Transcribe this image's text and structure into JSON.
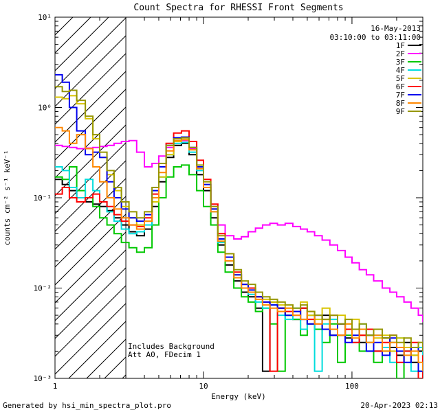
{
  "annotations": {
    "date": "16-May-2013",
    "time_range": "03:10:00 to 03:11:00",
    "note_line1": "Includes Background",
    "note_line2": "Att A0, FDecim 1"
  },
  "footer": {
    "generated_by": "Generated by hsi_min_spectra_plot.pro",
    "timestamp": "20-Apr-2023 02:13"
  },
  "chart_data": {
    "type": "line",
    "style": "stepped-histogram",
    "title": "Count Spectra for RHESSI Front Segments",
    "xlabel": "Energy (keV)",
    "ylabel": "counts cm⁻² s⁻¹ keV⁻¹",
    "x_scale": "log",
    "y_scale": "log",
    "xlim": [
      1,
      300
    ],
    "ylim": [
      0.001,
      10
    ],
    "grid": false,
    "legend_position": "top-right",
    "hatched_region": {
      "x_range": [
        1,
        3
      ],
      "style": "diagonal-hatch"
    },
    "x_ticks": [
      {
        "v": 1,
        "label": "1"
      },
      {
        "v": 10,
        "label": "10"
      },
      {
        "v": 100,
        "label": "100"
      }
    ],
    "y_ticks": [
      {
        "v": 10,
        "label": "10¹"
      },
      {
        "v": 1,
        "label": "10⁰"
      },
      {
        "v": 0.1,
        "label": "10⁻¹"
      },
      {
        "v": 0.01,
        "label": "10⁻²"
      },
      {
        "v": 0.001,
        "label": "10⁻³"
      }
    ],
    "x": [
      1.0,
      1.12,
      1.25,
      1.4,
      1.6,
      1.8,
      2.0,
      2.24,
      2.5,
      2.8,
      3.15,
      3.55,
      4.0,
      4.5,
      5.0,
      5.6,
      6.3,
      7.1,
      8.0,
      9.0,
      10,
      11.2,
      12.5,
      14,
      16,
      18,
      20,
      22.4,
      25,
      28,
      31.5,
      35.5,
      40,
      45,
      50,
      56,
      63,
      71,
      80,
      90,
      100,
      112,
      125,
      140,
      160,
      180,
      200,
      224,
      250,
      280,
      300
    ],
    "series": [
      {
        "name": "1F",
        "color": "#000000",
        "values": [
          0.16,
          0.14,
          0.12,
          0.1,
          0.09,
          0.085,
          0.08,
          0.072,
          0.06,
          0.05,
          0.042,
          0.038,
          0.045,
          0.08,
          0.15,
          0.28,
          0.38,
          0.4,
          0.3,
          0.18,
          0.12,
          0.06,
          0.03,
          0.018,
          0.012,
          0.009,
          0.008,
          0.006,
          0.0012,
          0.007,
          0.006,
          0.005,
          0.0045,
          0.006,
          0.004,
          0.0035,
          0.005,
          0.003,
          0.004,
          0.0028,
          0.0035,
          0.0025,
          0.003,
          0.002,
          0.0028,
          0.0022,
          0.0018,
          0.0025,
          0.0015,
          0.002,
          0.0016
        ]
      },
      {
        "name": "2F",
        "color": "#ff00ff",
        "values": [
          0.38,
          0.37,
          0.36,
          0.35,
          0.355,
          0.36,
          0.37,
          0.38,
          0.4,
          0.42,
          0.43,
          0.32,
          0.22,
          0.24,
          0.29,
          0.36,
          0.42,
          0.43,
          0.35,
          0.22,
          0.14,
          0.08,
          0.05,
          0.038,
          0.035,
          0.037,
          0.042,
          0.046,
          0.05,
          0.052,
          0.05,
          0.052,
          0.048,
          0.045,
          0.042,
          0.038,
          0.034,
          0.03,
          0.026,
          0.022,
          0.019,
          0.016,
          0.014,
          0.012,
          0.01,
          0.009,
          0.008,
          0.007,
          0.006,
          0.005,
          0.0042
        ]
      },
      {
        "name": "3F",
        "color": "#00c800",
        "values": [
          0.17,
          0.16,
          0.22,
          0.12,
          0.1,
          0.08,
          0.06,
          0.05,
          0.04,
          0.032,
          0.028,
          0.025,
          0.028,
          0.05,
          0.1,
          0.17,
          0.22,
          0.23,
          0.18,
          0.12,
          0.08,
          0.05,
          0.025,
          0.015,
          0.01,
          0.008,
          0.007,
          0.0055,
          0.006,
          0.004,
          0.0012,
          0.005,
          0.0045,
          0.003,
          0.005,
          0.0035,
          0.0025,
          0.004,
          0.0015,
          0.003,
          0.0035,
          0.002,
          0.0025,
          0.0015,
          0.002,
          0.0025,
          0.001,
          0.002,
          0.0018,
          0.0012,
          0.0015
        ]
      },
      {
        "name": "4F",
        "color": "#00dddd",
        "values": [
          0.22,
          0.2,
          0.13,
          0.1,
          0.16,
          0.12,
          0.09,
          0.07,
          0.055,
          0.045,
          0.04,
          0.042,
          0.05,
          0.09,
          0.17,
          0.3,
          0.4,
          0.41,
          0.32,
          0.2,
          0.13,
          0.07,
          0.032,
          0.02,
          0.013,
          0.01,
          0.0085,
          0.007,
          0.006,
          0.0065,
          0.005,
          0.0045,
          0.006,
          0.0035,
          0.005,
          0.0012,
          0.004,
          0.0045,
          0.003,
          0.0035,
          0.0025,
          0.004,
          0.002,
          0.003,
          0.0022,
          0.0015,
          0.0028,
          0.002,
          0.0012,
          0.0022,
          0.0018
        ]
      },
      {
        "name": "5F",
        "color": "#d9c400",
        "values": [
          1.3,
          1.25,
          1.35,
          1.1,
          0.75,
          0.45,
          0.28,
          0.18,
          0.12,
          0.08,
          0.06,
          0.05,
          0.055,
          0.09,
          0.17,
          0.3,
          0.42,
          0.44,
          0.34,
          0.21,
          0.14,
          0.075,
          0.035,
          0.022,
          0.014,
          0.011,
          0.01,
          0.008,
          0.0075,
          0.007,
          0.0065,
          0.006,
          0.0055,
          0.007,
          0.005,
          0.0045,
          0.006,
          0.0035,
          0.005,
          0.004,
          0.0045,
          0.003,
          0.0035,
          0.0028,
          0.003,
          0.002,
          0.0028,
          0.0022,
          0.0018,
          0.0025,
          0.002
        ]
      },
      {
        "name": "6F",
        "color": "#ff0000",
        "values": [
          0.11,
          0.13,
          0.1,
          0.09,
          0.1,
          0.11,
          0.09,
          0.08,
          0.065,
          0.055,
          0.05,
          0.048,
          0.06,
          0.11,
          0.22,
          0.4,
          0.52,
          0.55,
          0.42,
          0.26,
          0.16,
          0.085,
          0.04,
          0.024,
          0.015,
          0.011,
          0.01,
          0.008,
          0.007,
          0.0012,
          0.006,
          0.0055,
          0.005,
          0.006,
          0.0045,
          0.004,
          0.0035,
          0.005,
          0.003,
          0.0035,
          0.0025,
          0.003,
          0.0035,
          0.002,
          0.0025,
          0.003,
          0.0015,
          0.002,
          0.0025,
          0.001,
          0.0018
        ]
      },
      {
        "name": "7F",
        "color": "#0000ee",
        "values": [
          2.3,
          1.9,
          1.0,
          0.55,
          0.3,
          0.32,
          0.28,
          0.15,
          0.1,
          0.075,
          0.06,
          0.055,
          0.065,
          0.12,
          0.22,
          0.38,
          0.46,
          0.47,
          0.36,
          0.22,
          0.14,
          0.075,
          0.035,
          0.022,
          0.014,
          0.011,
          0.0095,
          0.008,
          0.007,
          0.0065,
          0.006,
          0.005,
          0.0055,
          0.0045,
          0.004,
          0.005,
          0.0035,
          0.003,
          0.004,
          0.0025,
          0.003,
          0.0035,
          0.002,
          0.0025,
          0.0018,
          0.0028,
          0.002,
          0.0015,
          0.0022,
          0.0012,
          0.0015
        ]
      },
      {
        "name": "8F",
        "color": "#ff8800",
        "values": [
          0.6,
          0.55,
          0.4,
          0.5,
          0.35,
          0.22,
          0.15,
          0.1,
          0.075,
          0.06,
          0.05,
          0.045,
          0.055,
          0.1,
          0.19,
          0.33,
          0.43,
          0.44,
          0.34,
          0.21,
          0.13,
          0.07,
          0.033,
          0.02,
          0.013,
          0.01,
          0.009,
          0.0075,
          0.0065,
          0.006,
          0.0055,
          0.006,
          0.005,
          0.0045,
          0.0055,
          0.004,
          0.0045,
          0.0035,
          0.003,
          0.004,
          0.0028,
          0.0035,
          0.0025,
          0.003,
          0.002,
          0.0025,
          0.0022,
          0.0018,
          0.002,
          0.0015,
          0.0012
        ]
      },
      {
        "name": "9F",
        "color": "#969600",
        "values": [
          1.7,
          1.5,
          1.55,
          1.2,
          0.8,
          0.5,
          0.32,
          0.2,
          0.13,
          0.09,
          0.07,
          0.06,
          0.07,
          0.13,
          0.24,
          0.38,
          0.45,
          0.46,
          0.36,
          0.23,
          0.15,
          0.08,
          0.038,
          0.024,
          0.016,
          0.012,
          0.011,
          0.009,
          0.008,
          0.0075,
          0.007,
          0.0065,
          0.006,
          0.0065,
          0.0055,
          0.005,
          0.0045,
          0.005,
          0.004,
          0.0045,
          0.0035,
          0.004,
          0.003,
          0.0035,
          0.0028,
          0.003,
          0.0025,
          0.0028,
          0.0022,
          0.0025,
          0.002
        ]
      }
    ]
  }
}
